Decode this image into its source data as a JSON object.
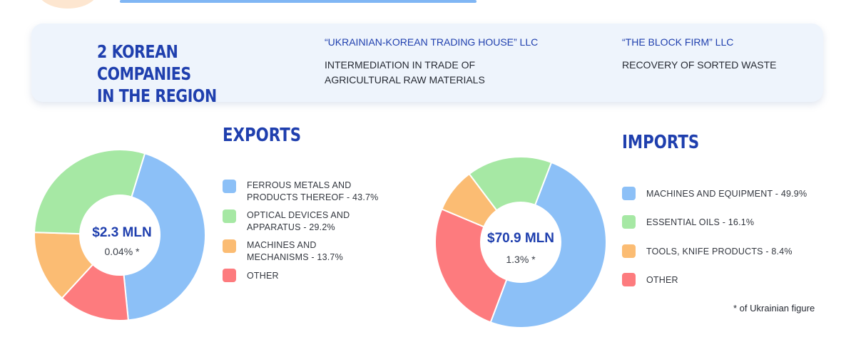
{
  "colors": {
    "blue": "#8cc0f7",
    "green": "#a6e8a4",
    "orange": "#fbbc73",
    "red": "#fd7b7e",
    "title": "#1f3fae"
  },
  "header": {
    "title_line1": "2 KOREAN COMPANIES",
    "title_line2": "IN THE REGION",
    "companies": [
      {
        "name": "“UKRAINIAN-KOREAN TRADING HOUSE” LLC",
        "desc_line1": "INTERMEDIATION IN TRADE OF",
        "desc_line2": "AGRICULTURAL RAW MATERIALS"
      },
      {
        "name": "“THE BLOCK FIRM” LLC",
        "desc_line1": "RECOVERY OF SORTED WASTE",
        "desc_line2": ""
      }
    ]
  },
  "footnote": "* of Ukrainian figure",
  "chart_data": [
    {
      "type": "pie",
      "title": "EXPORTS",
      "center_value": "$2.3 MLN",
      "center_note": "0.04% *",
      "slices": [
        {
          "label_line1": "FERROUS METALS AND",
          "label_line2": "PRODUCTS THEREOF - 43.7%",
          "value": 43.7,
          "color": "#8cc0f7"
        },
        {
          "label_line1": "OPTICAL DEVICES AND",
          "label_line2": "APPARATUS - 29.2%",
          "value": 29.2,
          "color": "#a6e8a4"
        },
        {
          "label_line1": "MACHINES AND",
          "label_line2": "MECHANISMS - 13.7%",
          "value": 13.7,
          "color": "#fbbc73"
        },
        {
          "label_line1": "OTHER",
          "label_line2": "",
          "value": 13.4,
          "color": "#fd7b7e"
        }
      ]
    },
    {
      "type": "pie",
      "title": "IMPORTS",
      "center_value": "$70.9 MLN",
      "center_note": "1.3% *",
      "slices": [
        {
          "label_line1": "MACHINES AND EQUIPMENT - 49.9%",
          "label_line2": "",
          "value": 49.9,
          "color": "#8cc0f7"
        },
        {
          "label_line1": "ESSENTIAL OILS - 16.1%",
          "label_line2": "",
          "value": 16.1,
          "color": "#a6e8a4"
        },
        {
          "label_line1": "TOOLS, KNIFE PRODUCTS - 8.4%",
          "label_line2": "",
          "value": 8.4,
          "color": "#fbbc73"
        },
        {
          "label_line1": "OTHER",
          "label_line2": "",
          "value": 25.6,
          "color": "#fd7b7e"
        }
      ]
    }
  ]
}
